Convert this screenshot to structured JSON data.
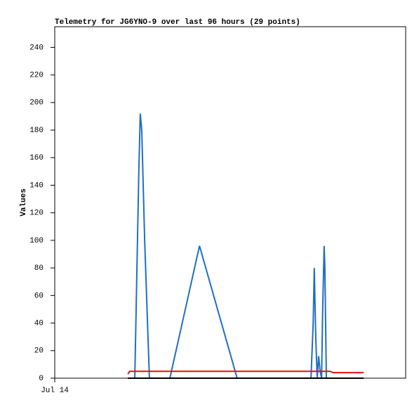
{
  "chart_data": {
    "type": "line",
    "title": "Telemetry for JG6YNO-9 over last 96 hours (29 points)",
    "y_label": "Values",
    "x": [
      20.0,
      20.5,
      21.9,
      23.0,
      23.4,
      23.8,
      24.6,
      25.9,
      31.5,
      39.6,
      49.9,
      70.1,
      70.7,
      71.0,
      71.4,
      71.8,
      72.2,
      72.6,
      73.0,
      73.3,
      73.7,
      73.9,
      74.3,
      74.9,
      75.3,
      76.2,
      79.1,
      82.0,
      84.5
    ],
    "series": [
      {
        "color": "#1f6fc5",
        "values": [
          0,
          0,
          0,
          150,
          192,
          180,
          100,
          0,
          0,
          96,
          0,
          0,
          40,
          80,
          30,
          0,
          16,
          5,
          0,
          50,
          96,
          80,
          0,
          0,
          0,
          0,
          0,
          0,
          0
        ]
      },
      {
        "color": "#e01010",
        "values": [
          3,
          5,
          5,
          5,
          5,
          5,
          5,
          5,
          5,
          5,
          5,
          5,
          5,
          5,
          5,
          5,
          5,
          5,
          5,
          5,
          5,
          5,
          5,
          5,
          5,
          4,
          4,
          4,
          4
        ]
      },
      {
        "color": "#000000",
        "values": [
          0,
          0,
          0,
          0,
          0,
          0,
          0,
          0,
          0,
          0,
          0,
          0,
          0,
          0,
          0,
          0,
          0,
          0,
          0,
          0,
          0,
          0,
          0,
          0,
          0,
          0,
          0,
          0,
          0
        ]
      }
    ],
    "xlim": [
      0,
      96
    ],
    "xticks": [
      {
        "value": 0,
        "label": "Jul 14"
      }
    ],
    "ylim": [
      0,
      255
    ],
    "yticks": [
      0,
      20,
      40,
      60,
      80,
      100,
      120,
      140,
      160,
      180,
      200,
      220,
      240
    ]
  }
}
